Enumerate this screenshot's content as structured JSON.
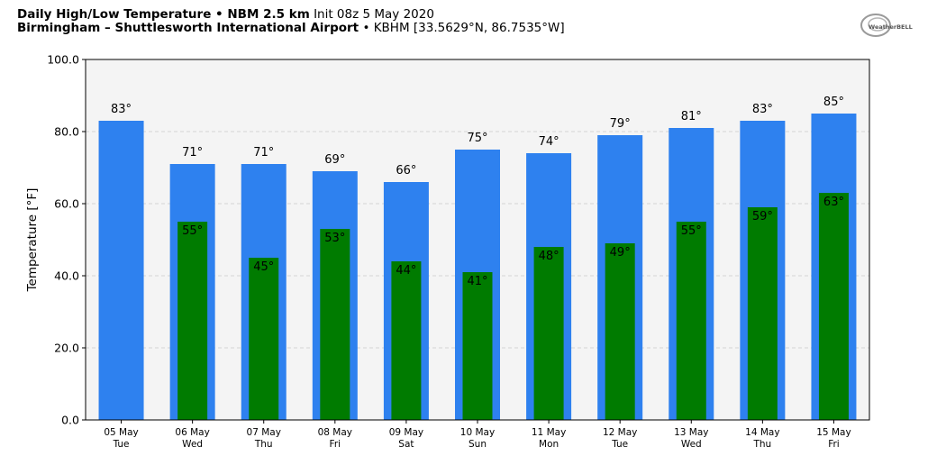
{
  "header": {
    "line1_bold": "Daily High/Low Temperature • NBM 2.5 km",
    "line1_normal": "Init 08z 5 May 2020",
    "line2_bold": "Birmingham – Shuttlesworth International Airport",
    "line2_normal": "• KBHM [33.5629°N, 86.7535°W]"
  },
  "logo": {
    "text": "WeatherBELL",
    "icon": "weatherbell-logo"
  },
  "colors": {
    "high": "#2e81ef",
    "low": "#007b00",
    "plot_bg": "#f4f4f4"
  },
  "chart_data": {
    "type": "bar",
    "ylabel": "Temperature [°F]",
    "ylim": [
      0,
      100
    ],
    "yticks": [
      "0.0",
      "20.0",
      "40.0",
      "60.0",
      "80.0",
      "100.0"
    ],
    "grid": true,
    "categories": [
      "05 May",
      "06 May",
      "07 May",
      "08 May",
      "09 May",
      "10 May",
      "11 May",
      "12 May",
      "13 May",
      "14 May",
      "15 May"
    ],
    "days": [
      "Tue",
      "Wed",
      "Thu",
      "Fri",
      "Sat",
      "Sun",
      "Mon",
      "Tue",
      "Wed",
      "Thu",
      "Fri"
    ],
    "series": [
      {
        "values": [
          83,
          71,
          71,
          69,
          66,
          75,
          74,
          79,
          81,
          83,
          85
        ]
      },
      {
        "values": [
          null,
          55,
          45,
          53,
          44,
          41,
          48,
          49,
          55,
          59,
          63
        ]
      }
    ],
    "value_suffix": "°"
  }
}
